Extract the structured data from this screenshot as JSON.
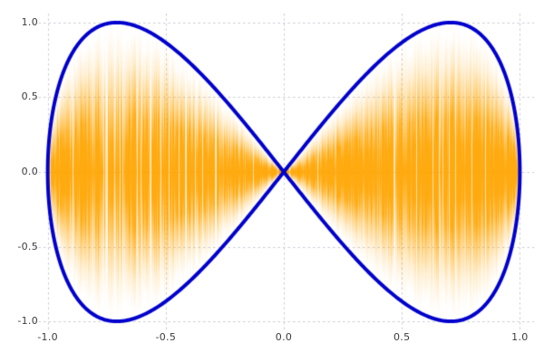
{
  "figure": {
    "background": "#ffffff",
    "title": ""
  },
  "chart_data": {
    "type": "line",
    "title": "",
    "xlabel": "",
    "ylabel": "",
    "xlim": [
      -1.06,
      1.06
    ],
    "ylim": [
      -1.06,
      1.06
    ],
    "grid": true,
    "grid_style": "dashed",
    "grid_color": "#cbccd8",
    "tick_label_color": "#3d3d3d",
    "xticks": {
      "values": [
        -1.0,
        -0.5,
        0.0,
        0.5,
        1.0
      ],
      "labels": [
        "-1.0",
        "-0.5",
        "0.0",
        "0.5",
        "1.0"
      ]
    },
    "yticks": {
      "values": [
        -1.0,
        -0.5,
        0.0,
        0.5,
        1.0
      ],
      "labels": [
        "-1.0",
        "-0.5",
        "0.0",
        "0.5",
        "1.0"
      ]
    },
    "series": [
      {
        "name": "modulated-fill",
        "kind": "vertical-fill",
        "description": "dense vertical orange strokes filling the lemniscate envelope, solid at y=0 and fading to transparent at the envelope",
        "envelope": "y = ±2·|x|·sqrt(1 - x²)",
        "x_range": [
          -1,
          1
        ],
        "color": "#FFA500"
      },
      {
        "name": "lissajous-outline",
        "kind": "parametric",
        "x_t": "sin(t)",
        "y_t": "sin(2t)",
        "t_range": [
          0,
          6.283185307
        ],
        "samples": 1200,
        "color": "#0000CD",
        "linewidth": 4
      }
    ],
    "key_points": {
      "crossing": [
        0,
        0
      ],
      "left_lobe_top": [
        -0.707,
        1.0
      ],
      "left_lobe_bottom": [
        -0.707,
        -1.0
      ],
      "right_lobe_top": [
        0.707,
        1.0
      ],
      "right_lobe_bottom": [
        0.707,
        -1.0
      ],
      "left_extreme": [
        -1.0,
        0.0
      ],
      "right_extreme": [
        1.0,
        0.0
      ]
    }
  }
}
